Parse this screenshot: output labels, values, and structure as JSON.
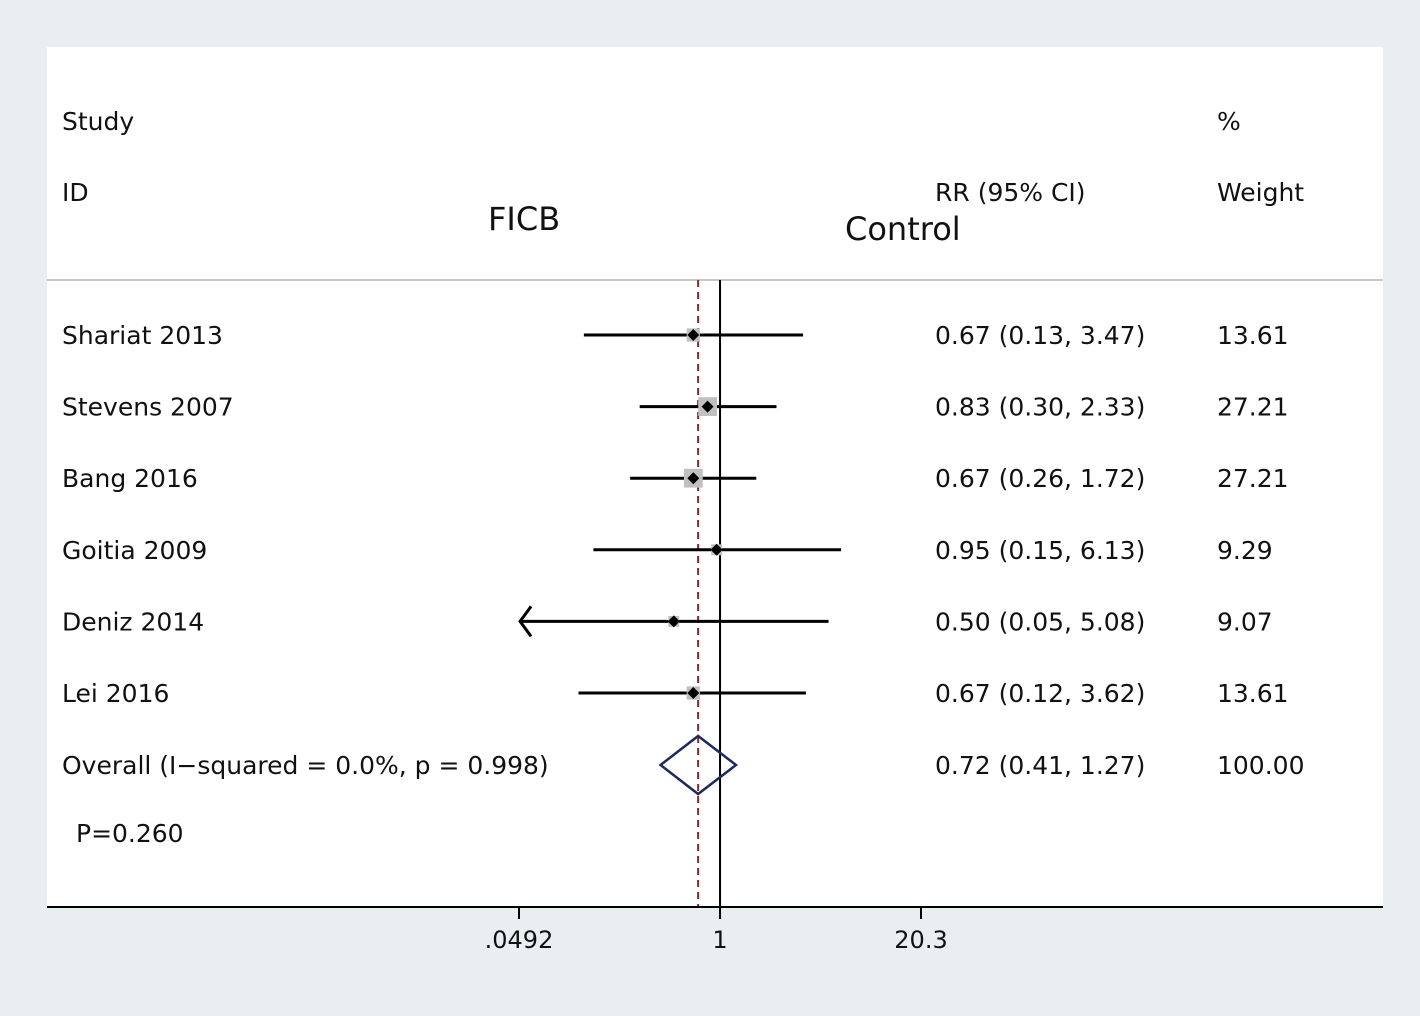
{
  "header": {
    "study": "Study",
    "id": "ID",
    "rr_ci": "RR (95% CI)",
    "pct": "%",
    "weight": "Weight",
    "left_label": "FICB",
    "right_label": "Control"
  },
  "chart_data": {
    "type": "forest",
    "x_scale": "log",
    "xlim": [
      0.0492,
      20.3
    ],
    "x_ticks": [
      {
        "value": 0.0492,
        "label": ".0492"
      },
      {
        "value": 1,
        "label": "1"
      },
      {
        "value": 20.3,
        "label": "20.3"
      }
    ],
    "null_line": 1,
    "overall_line": 0.72,
    "studies": [
      {
        "id": "Shariat 2013",
        "rr": 0.67,
        "lo": 0.13,
        "hi": 3.47,
        "weight": 13.61,
        "text": "0.67 (0.13, 3.47)",
        "weight_text": "13.61"
      },
      {
        "id": "Stevens 2007",
        "rr": 0.83,
        "lo": 0.3,
        "hi": 2.33,
        "weight": 27.21,
        "text": "0.83 (0.30, 2.33)",
        "weight_text": "27.21"
      },
      {
        "id": "Bang 2016",
        "rr": 0.67,
        "lo": 0.26,
        "hi": 1.72,
        "weight": 27.21,
        "text": "0.67 (0.26, 1.72)",
        "weight_text": "27.21"
      },
      {
        "id": "Goitia 2009",
        "rr": 0.95,
        "lo": 0.15,
        "hi": 6.13,
        "weight": 9.29,
        "text": "0.95 (0.15, 6.13)",
        "weight_text": "9.29"
      },
      {
        "id": "Deniz 2014",
        "rr": 0.5,
        "lo": 0.05,
        "hi": 5.08,
        "weight": 9.07,
        "text": "0.50 (0.05, 5.08)",
        "weight_text": "9.07",
        "arrow_left": true
      },
      {
        "id": "Lei 2016",
        "rr": 0.67,
        "lo": 0.12,
        "hi": 3.62,
        "weight": 13.61,
        "text": "0.67 (0.12, 3.62)",
        "weight_text": "13.61"
      }
    ],
    "overall": {
      "label": "Overall  (I−squared = 0.0%, p = 0.998)",
      "rr": 0.72,
      "lo": 0.41,
      "hi": 1.27,
      "text": "0.72 (0.41, 1.27)",
      "weight_text": "100.00"
    },
    "p_value": "P=0.260",
    "colors": {
      "background": "#e9eff1",
      "panel": "#ffffff",
      "ci_line": "#000000",
      "weight_box": "#c0c0c0",
      "overall_diamond": "#1c2a5c",
      "overall_line": "#8b2a2a"
    }
  }
}
